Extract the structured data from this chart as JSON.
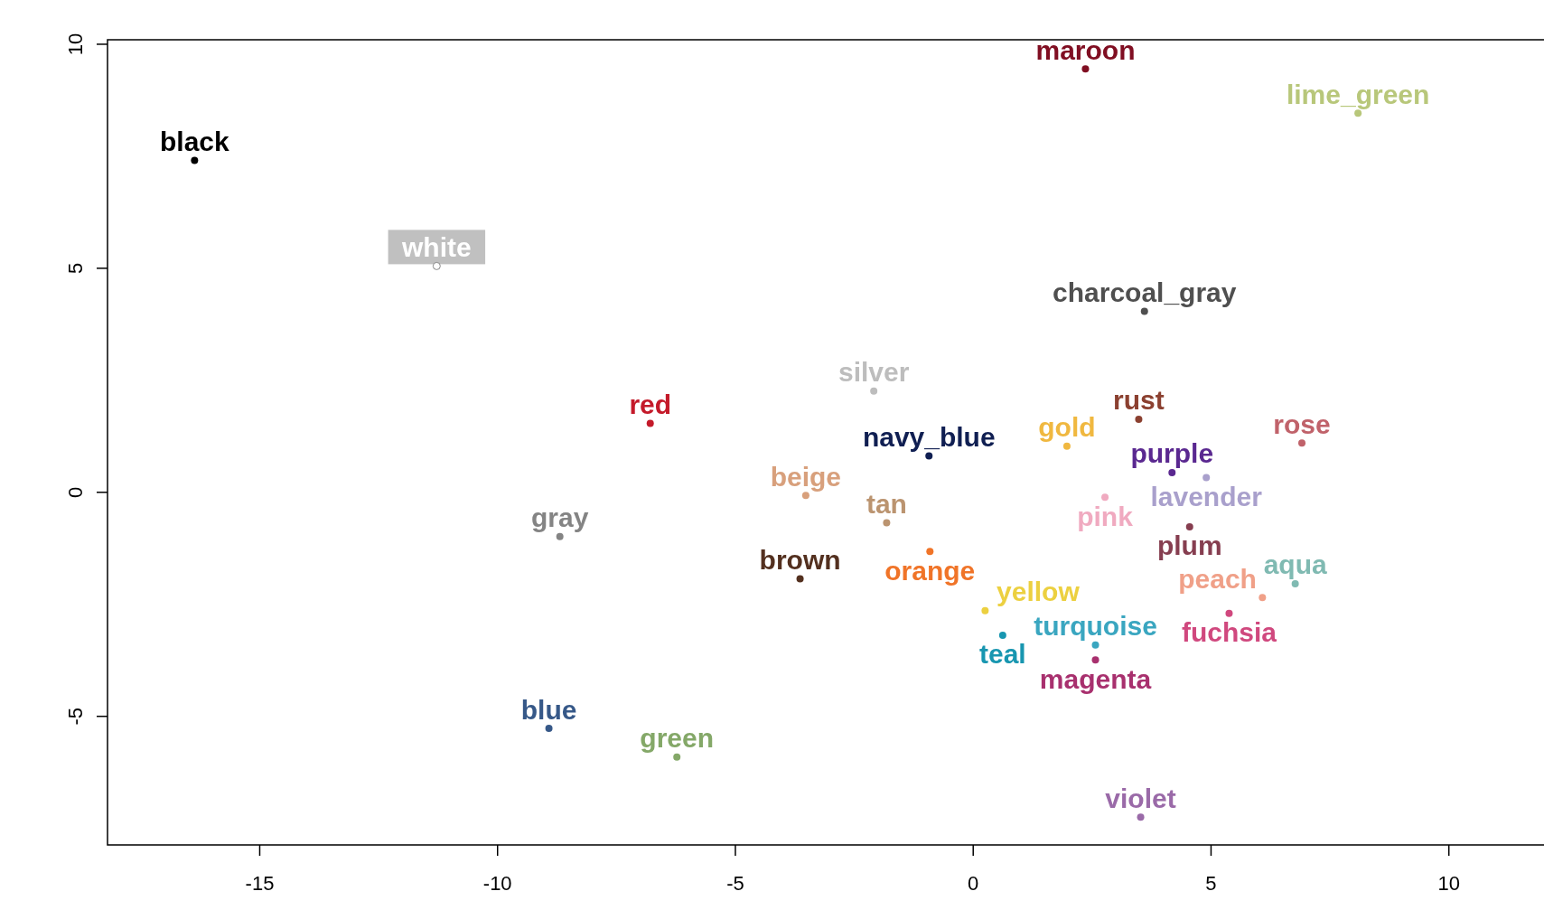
{
  "chart_data": {
    "type": "scatter",
    "marker": "circle",
    "grid": false,
    "xlim": [
      -18.2,
      12.0
    ],
    "ylim": [
      -7.87,
      10.1
    ],
    "xticks": [
      -15,
      -10,
      -5,
      0,
      5,
      10
    ],
    "yticks": [
      -5,
      0,
      5,
      10
    ],
    "series": [
      {
        "name": "black",
        "color": "#000000",
        "x": [
          -16.37
        ],
        "values": [
          7.41
        ]
      },
      {
        "name": "white",
        "color": "#ffffff",
        "x": [
          -11.28
        ],
        "values": [
          5.05
        ]
      },
      {
        "name": "maroon",
        "color": "#800e22",
        "x": [
          2.36
        ],
        "values": [
          9.45
        ]
      },
      {
        "name": "lime_green",
        "color": "#b8c77a",
        "x": [
          8.09
        ],
        "values": [
          8.46
        ]
      },
      {
        "name": "charcoal_gray",
        "color": "#4f4f4f",
        "x": [
          3.6
        ],
        "values": [
          4.04
        ]
      },
      {
        "name": "silver",
        "color": "#bdbdbd",
        "x": [
          -2.09
        ],
        "values": [
          2.26
        ]
      },
      {
        "name": "red",
        "color": "#c41a2a",
        "x": [
          -6.79
        ],
        "values": [
          1.54
        ]
      },
      {
        "name": "rust",
        "color": "#8b4030",
        "x": [
          3.48
        ],
        "values": [
          1.63
        ]
      },
      {
        "name": "rose",
        "color": "#c0626a",
        "x": [
          6.91
        ],
        "values": [
          1.1
        ]
      },
      {
        "name": "navy_blue",
        "color": "#101f52",
        "x": [
          -0.93
        ],
        "values": [
          0.81
        ]
      },
      {
        "name": "gold",
        "color": "#f0b840",
        "x": [
          1.97
        ],
        "values": [
          1.03
        ]
      },
      {
        "name": "lavender",
        "color": "#a9a0cc",
        "x": [
          4.9
        ],
        "values": [
          0.33
        ]
      },
      {
        "name": "purple",
        "color": "#5a2890",
        "x": [
          4.18
        ],
        "values": [
          0.44
        ]
      },
      {
        "name": "pink",
        "color": "#f0aac0",
        "x": [
          2.77
        ],
        "values": [
          -0.11
        ]
      },
      {
        "name": "beige",
        "color": "#d8a07c",
        "x": [
          -3.52
        ],
        "values": [
          -0.07
        ]
      },
      {
        "name": "tan",
        "color": "#bb9470",
        "x": [
          -1.82
        ],
        "values": [
          -0.68
        ]
      },
      {
        "name": "plum",
        "color": "#863e50",
        "x": [
          4.55
        ],
        "values": [
          -0.77
        ]
      },
      {
        "name": "gray",
        "color": "#848484",
        "x": [
          -8.69
        ],
        "values": [
          -0.99
        ]
      },
      {
        "name": "orange",
        "color": "#f07428",
        "x": [
          -0.91
        ],
        "values": [
          -1.32
        ]
      },
      {
        "name": "brown",
        "color": "#53301f",
        "x": [
          -3.64
        ],
        "values": [
          -1.93
        ]
      },
      {
        "name": "aqua",
        "color": "#80bab2",
        "x": [
          6.77
        ],
        "values": [
          -2.04
        ]
      },
      {
        "name": "peach",
        "color": "#f0a088",
        "x": [
          6.08
        ],
        "values": [
          -2.35
        ]
      },
      {
        "name": "fuchsia",
        "color": "#d0487e",
        "x": [
          5.38
        ],
        "values": [
          -2.7
        ]
      },
      {
        "name": "yellow",
        "color": "#ecd040",
        "x": [
          0.25
        ],
        "values": [
          -2.64
        ]
      },
      {
        "name": "teal",
        "color": "#1896b0",
        "x": [
          0.62
        ],
        "values": [
          -3.19
        ]
      },
      {
        "name": "magenta",
        "color": "#a8306e",
        "x": [
          2.57
        ],
        "values": [
          -3.74
        ]
      },
      {
        "name": "turquoise",
        "color": "#3aa6c0",
        "x": [
          2.57
        ],
        "values": [
          -3.41
        ]
      },
      {
        "name": "blue",
        "color": "#365888",
        "x": [
          -8.92
        ],
        "values": [
          -5.27
        ]
      },
      {
        "name": "green",
        "color": "#84a868",
        "x": [
          -6.23
        ],
        "values": [
          -5.91
        ]
      },
      {
        "name": "violet",
        "color": "#9a6aa8",
        "x": [
          3.52
        ],
        "values": [
          -7.25
        ]
      }
    ]
  }
}
